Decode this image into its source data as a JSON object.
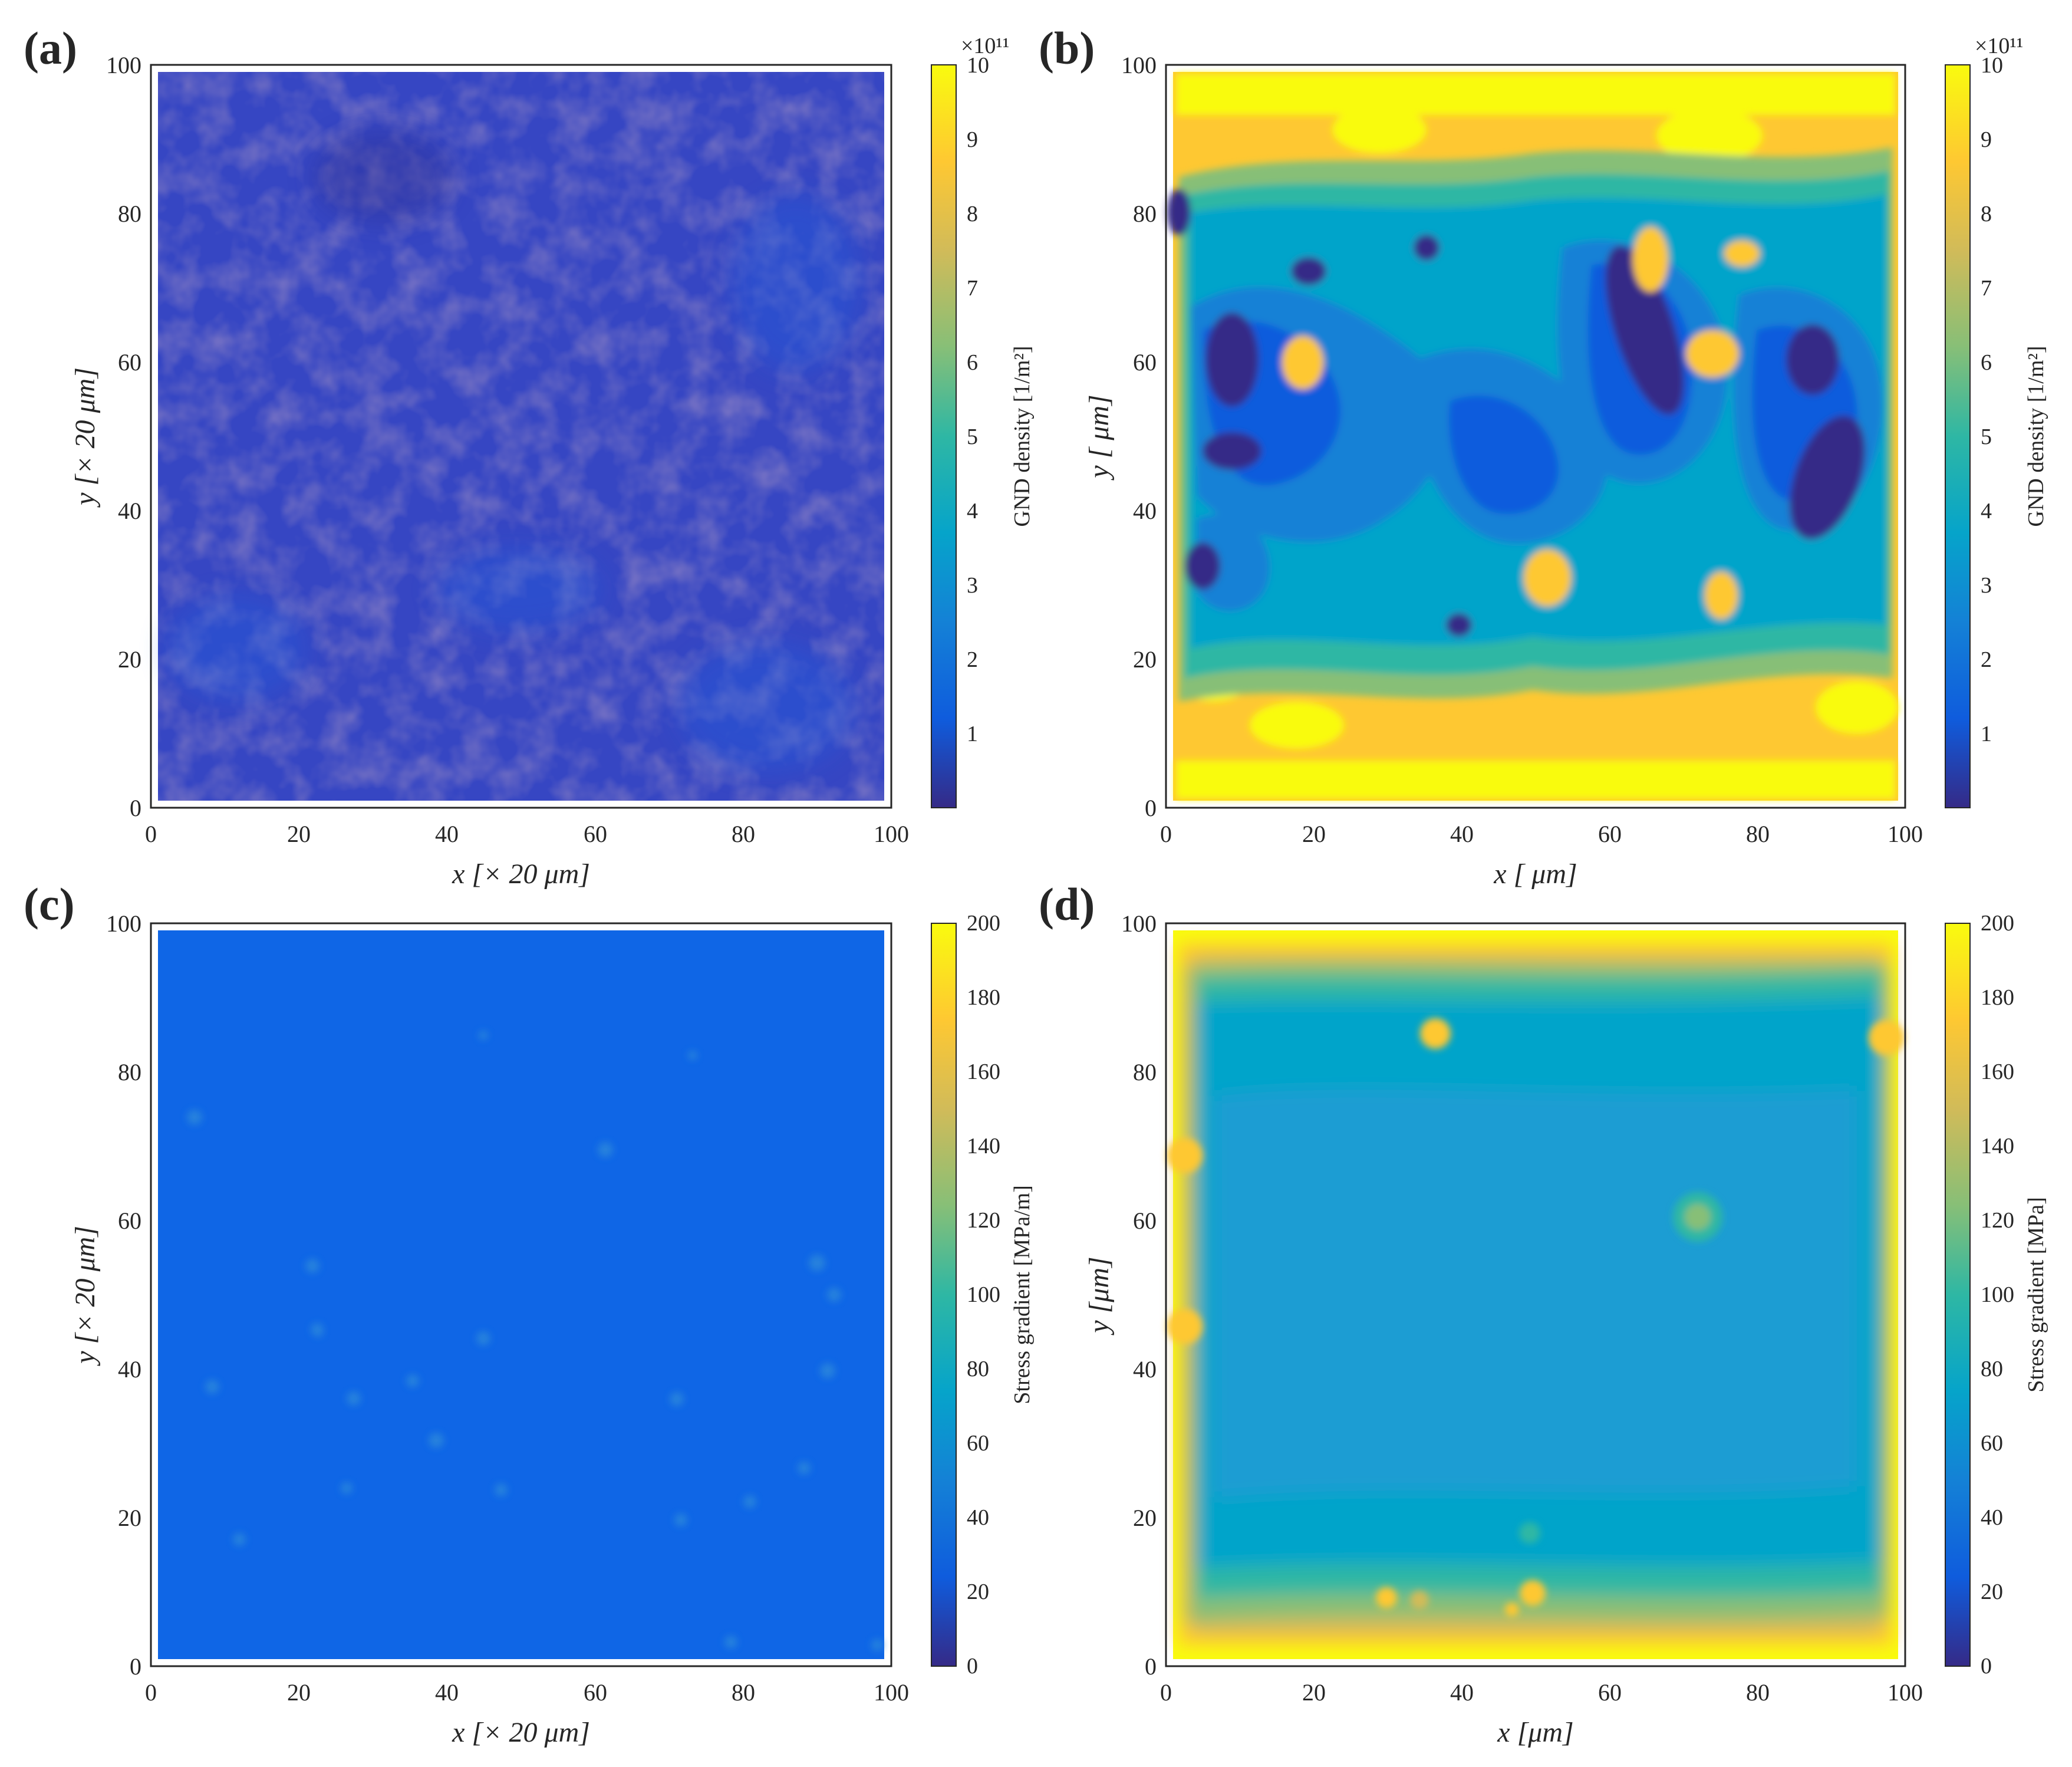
{
  "chart_data": [
    {
      "type": "heatmap",
      "panel_label": "(a)",
      "xlabel": "x [× 20 μm]",
      "ylabel": "y [× 20 μm]",
      "xlim": [
        0,
        100
      ],
      "ylim": [
        0,
        100
      ],
      "x_ticks": [
        "0",
        "20",
        "40",
        "60",
        "80",
        "100"
      ],
      "y_ticks": [
        "0",
        "20",
        "40",
        "60",
        "80",
        "100"
      ],
      "colorbar_label": "GND density [1/m²]",
      "colorbar_exponent": "×10¹¹",
      "colorbar_ticks": [
        "1",
        "2",
        "3",
        "4",
        "5",
        "6",
        "7",
        "8",
        "9",
        "10"
      ],
      "colorbar_range": [
        0,
        10
      ],
      "description_values": {
        "background_level": 1.0,
        "variation": "fine mottled noise, 0.3–1.5"
      }
    },
    {
      "type": "heatmap",
      "panel_label": "(b)",
      "xlabel": "x [ μm]",
      "ylabel": "y [ μm]",
      "xlim": [
        0,
        100
      ],
      "ylim": [
        0,
        100
      ],
      "x_ticks": [
        "0",
        "20",
        "40",
        "60",
        "80",
        "100"
      ],
      "y_ticks": [
        "0",
        "20",
        "40",
        "60",
        "80",
        "100"
      ],
      "colorbar_label": "GND density [1/m²]",
      "colorbar_exponent": "×10¹¹",
      "colorbar_ticks": [
        "1",
        "2",
        "3",
        "4",
        "5",
        "6",
        "7",
        "8",
        "9",
        "10"
      ],
      "colorbar_range": [
        0,
        10
      ]
    },
    {
      "type": "heatmap",
      "panel_label": "(c)",
      "xlabel": "x [× 20 μm]",
      "ylabel": "y [× 20 μm]",
      "xlim": [
        0,
        100
      ],
      "ylim": [
        0,
        100
      ],
      "x_ticks": [
        "0",
        "20",
        "40",
        "60",
        "80",
        "100"
      ],
      "y_ticks": [
        "0",
        "20",
        "40",
        "60",
        "80",
        "100"
      ],
      "colorbar_label": "Stress gradient [MPa/m]",
      "colorbar_ticks": [
        "0",
        "20",
        "40",
        "60",
        "80",
        "100",
        "120",
        "140",
        "160",
        "180",
        "200"
      ],
      "colorbar_range": [
        0,
        200
      ]
    },
    {
      "type": "heatmap",
      "panel_label": "(d)",
      "xlabel": "x [μm]",
      "ylabel": "y [μm]",
      "xlim": [
        0,
        100
      ],
      "ylim": [
        0,
        100
      ],
      "x_ticks": [
        "0",
        "20",
        "40",
        "60",
        "80",
        "100"
      ],
      "y_ticks": [
        "0",
        "20",
        "40",
        "60",
        "80",
        "100"
      ],
      "colorbar_label": "Stress gradient [MPa]",
      "colorbar_ticks": [
        "0",
        "20",
        "40",
        "60",
        "80",
        "100",
        "120",
        "140",
        "160",
        "180",
        "200"
      ],
      "colorbar_range": [
        0,
        200
      ]
    }
  ],
  "colors": {
    "parula": [
      "#352a87",
      "#0f5cdd",
      "#1481d6",
      "#06a4ca",
      "#2eb7a4",
      "#87bf77",
      "#d1bb59",
      "#fec832",
      "#f9fb0e"
    ],
    "frame": "#262626"
  }
}
